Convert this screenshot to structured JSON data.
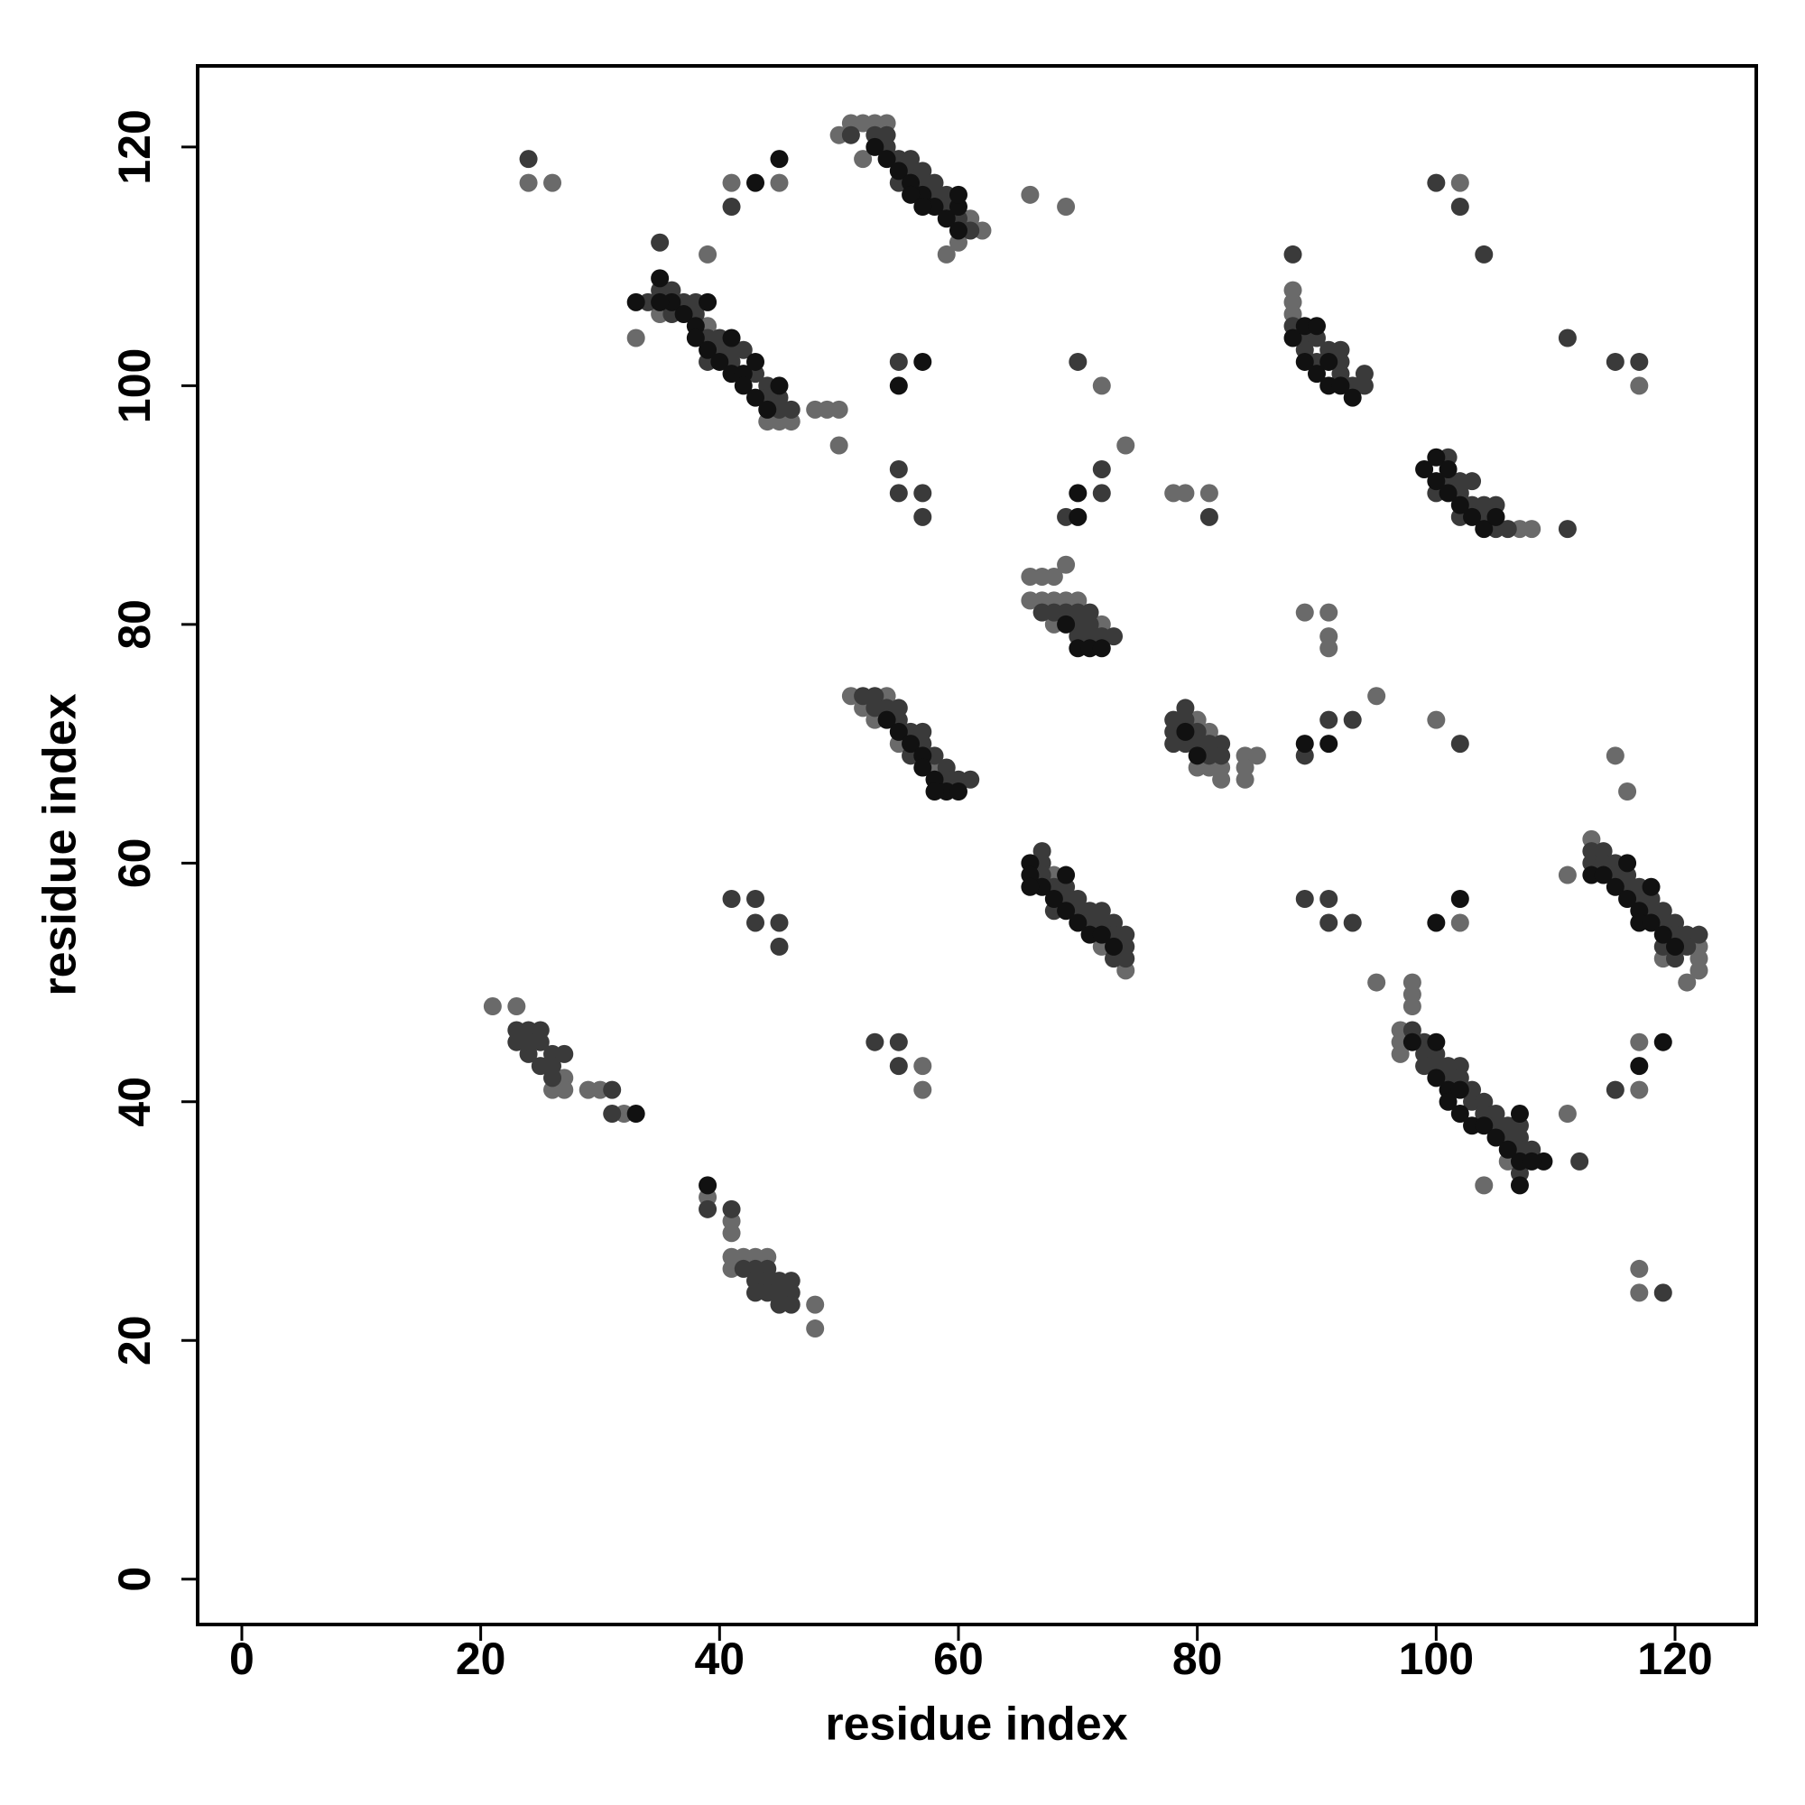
{
  "chart_data": {
    "type": "scatter",
    "x_label": "residue index",
    "y_label": "residue index",
    "xlim": [
      -3.7,
      126.8
    ],
    "ylim": [
      -3.8,
      126.8
    ],
    "xticks": [
      0,
      20,
      40,
      60,
      80,
      100,
      120
    ],
    "yticks": [
      0,
      20,
      40,
      60,
      80,
      100,
      120
    ],
    "grid": false,
    "series": [
      {
        "color": "#6a6a6a",
        "x": [
          50,
          51,
          52,
          53,
          54,
          52,
          59,
          61,
          62,
          60,
          24,
          26,
          41,
          45,
          66,
          69,
          102,
          39,
          33,
          35,
          39,
          44,
          45,
          46,
          48,
          49,
          50,
          50,
          72,
          74,
          78,
          79,
          81,
          88,
          88,
          88,
          117,
          107,
          108,
          66,
          67,
          68,
          69,
          66,
          67,
          68,
          69,
          70,
          68,
          72,
          89,
          91,
          91,
          91,
          51,
          52,
          53,
          54,
          55,
          58,
          80,
          81,
          80,
          81,
          82,
          82,
          84,
          84,
          84,
          85,
          95,
          100,
          115,
          116,
          68,
          72,
          74,
          111,
          113,
          119,
          121,
          122,
          122,
          122,
          102,
          95,
          98,
          98,
          98,
          97,
          97,
          97,
          106,
          104,
          111,
          117,
          117,
          117,
          117,
          21,
          23,
          26,
          27,
          27,
          29,
          30,
          32,
          57,
          57,
          39,
          41,
          41,
          41,
          41,
          42,
          43,
          44,
          48,
          48
        ],
        "values": [
          121,
          122,
          122,
          122,
          122,
          119,
          111,
          114,
          113,
          112,
          117,
          117,
          117,
          117,
          116,
          115,
          117,
          111,
          104,
          106,
          105,
          97,
          97,
          97,
          98,
          98,
          98,
          95,
          100,
          95,
          91,
          91,
          91,
          108,
          107,
          106,
          100,
          88,
          88,
          84,
          84,
          84,
          85,
          82,
          82,
          82,
          82,
          82,
          80,
          80,
          81,
          81,
          79,
          78,
          74,
          73,
          72,
          74,
          70,
          68,
          72,
          71,
          68,
          68,
          68,
          67,
          69,
          68,
          67,
          69,
          74,
          72,
          69,
          66,
          59,
          53,
          51,
          59,
          62,
          52,
          50,
          51,
          52,
          53,
          55,
          50,
          50,
          49,
          48,
          46,
          45,
          44,
          35,
          33,
          39,
          45,
          41,
          26,
          24,
          48,
          48,
          41,
          42,
          41,
          41,
          41,
          39,
          43,
          41,
          32,
          30,
          29,
          27,
          26,
          27,
          27,
          27,
          23,
          21
        ]
      },
      {
        "color": "#3a3a3a",
        "x": [
          51,
          53,
          54,
          54,
          55,
          56,
          56,
          57,
          58,
          58,
          59,
          59,
          60,
          61,
          55,
          57,
          24,
          41,
          100,
          102,
          104,
          88,
          35,
          34,
          35,
          36,
          37,
          38,
          38,
          39,
          40,
          40,
          41,
          41,
          42,
          43,
          44,
          44,
          45,
          45,
          46,
          36,
          39,
          55,
          55,
          55,
          57,
          57,
          70,
          72,
          72,
          69,
          81,
          88,
          89,
          89,
          90,
          91,
          92,
          92,
          93,
          94,
          94,
          90,
          92,
          111,
          115,
          117,
          100,
          101,
          101,
          102,
          102,
          103,
          103,
          104,
          104,
          105,
          105,
          106,
          102,
          111,
          67,
          68,
          69,
          70,
          71,
          70,
          71,
          71,
          72,
          73,
          70,
          52,
          53,
          53,
          54,
          55,
          55,
          56,
          57,
          57,
          58,
          59,
          59,
          60,
          61,
          56,
          78,
          78,
          79,
          79,
          80,
          80,
          81,
          81,
          82,
          78,
          79,
          82,
          89,
          91,
          93,
          102,
          67,
          67,
          67,
          68,
          69,
          69,
          70,
          70,
          71,
          71,
          72,
          72,
          73,
          73,
          74,
          74,
          74,
          68,
          73,
          113,
          113,
          114,
          114,
          115,
          115,
          116,
          116,
          117,
          117,
          118,
          118,
          119,
          119,
          120,
          120,
          121,
          121,
          122,
          119,
          120,
          89,
          91,
          91,
          93,
          41,
          43,
          43,
          45,
          45,
          98,
          99,
          99,
          100,
          100,
          101,
          101,
          102,
          102,
          103,
          103,
          104,
          104,
          105,
          105,
          106,
          106,
          107,
          107,
          107,
          108,
          107,
          99,
          112,
          115,
          119,
          23,
          23,
          24,
          24,
          25,
          25,
          25,
          26,
          26,
          26,
          27,
          24,
          31,
          31,
          53,
          55,
          55,
          39,
          41,
          42,
          43,
          43,
          43,
          44,
          44,
          45,
          45,
          45,
          46,
          46,
          46,
          44
        ],
        "values": [
          121,
          121,
          121,
          120,
          119,
          119,
          118,
          118,
          117,
          116,
          116,
          115,
          114,
          113,
          117,
          117,
          119,
          115,
          117,
          115,
          111,
          111,
          112,
          107,
          108,
          108,
          107,
          107,
          106,
          104,
          104,
          103,
          103,
          102,
          103,
          101,
          100,
          99,
          99,
          98,
          98,
          106,
          102,
          102,
          93,
          91,
          91,
          89,
          102,
          93,
          91,
          89,
          89,
          105,
          104,
          103,
          104,
          103,
          102,
          101,
          100,
          101,
          100,
          102,
          103,
          104,
          102,
          102,
          91,
          94,
          92,
          92,
          91,
          92,
          90,
          90,
          89,
          90,
          88,
          88,
          89,
          88,
          81,
          81,
          81,
          81,
          81,
          80,
          80,
          79,
          79,
          79,
          79,
          74,
          74,
          73,
          73,
          72,
          73,
          71,
          71,
          70,
          69,
          68,
          67,
          67,
          67,
          69,
          72,
          71,
          73,
          72,
          71,
          70,
          70,
          69,
          70,
          70,
          70,
          69,
          69,
          72,
          72,
          70,
          61,
          60,
          59,
          58,
          58,
          57,
          57,
          56,
          56,
          55,
          56,
          55,
          55,
          54,
          54,
          53,
          52,
          56,
          52,
          61,
          60,
          61,
          60,
          60,
          59,
          59,
          58,
          58,
          57,
          57,
          56,
          56,
          55,
          55,
          54,
          54,
          53,
          54,
          53,
          52,
          57,
          57,
          55,
          55,
          57,
          57,
          55,
          55,
          53,
          46,
          45,
          44,
          44,
          43,
          43,
          42,
          43,
          42,
          41,
          40,
          40,
          39,
          39,
          38,
          38,
          37,
          38,
          37,
          36,
          36,
          34,
          43,
          35,
          41,
          24,
          46,
          45,
          46,
          44,
          46,
          45,
          43,
          44,
          43,
          42,
          44,
          45,
          41,
          39,
          45,
          45,
          43,
          31,
          31,
          26,
          26,
          25,
          24,
          26,
          25,
          24,
          25,
          23,
          25,
          24,
          23,
          24
        ]
      },
      {
        "color": "#111111",
        "x": [
          53,
          54,
          55,
          56,
          57,
          58,
          59,
          60,
          60,
          60,
          56,
          57,
          43,
          45,
          33,
          35,
          36,
          37,
          38,
          38,
          39,
          40,
          41,
          42,
          42,
          43,
          44,
          35,
          39,
          41,
          43,
          45,
          57,
          55,
          70,
          70,
          88,
          89,
          90,
          89,
          90,
          91,
          91,
          93,
          92,
          99,
          100,
          100,
          101,
          102,
          103,
          104,
          101,
          105,
          69,
          70,
          71,
          72,
          54,
          55,
          56,
          57,
          58,
          59,
          60,
          58,
          57,
          79,
          80,
          89,
          91,
          66,
          66,
          67,
          68,
          69,
          70,
          71,
          72,
          73,
          69,
          66,
          113,
          114,
          115,
          116,
          116,
          117,
          117,
          118,
          118,
          119,
          120,
          100,
          102,
          98,
          100,
          100,
          101,
          101,
          102,
          102,
          103,
          104,
          105,
          106,
          107,
          107,
          107,
          109,
          108,
          117,
          119,
          33,
          39
        ],
        "values": [
          120,
          119,
          118,
          117,
          116,
          115,
          114,
          113,
          115,
          116,
          116,
          115,
          117,
          119,
          107,
          109,
          107,
          106,
          105,
          104,
          103,
          102,
          101,
          101,
          100,
          99,
          98,
          107,
          107,
          104,
          102,
          100,
          102,
          100,
          91,
          89,
          104,
          105,
          105,
          102,
          101,
          100,
          102,
          99,
          100,
          93,
          94,
          92,
          91,
          90,
          89,
          88,
          93,
          89,
          80,
          78,
          78,
          78,
          72,
          71,
          70,
          69,
          67,
          66,
          66,
          66,
          68,
          71,
          69,
          70,
          70,
          60,
          59,
          58,
          57,
          56,
          55,
          54,
          54,
          53,
          59,
          58,
          59,
          59,
          58,
          60,
          57,
          56,
          55,
          58,
          55,
          54,
          53,
          55,
          57,
          45,
          45,
          42,
          41,
          40,
          41,
          39,
          38,
          38,
          37,
          36,
          39,
          35,
          33,
          35,
          35,
          43,
          45,
          39,
          33
        ]
      }
    ]
  }
}
